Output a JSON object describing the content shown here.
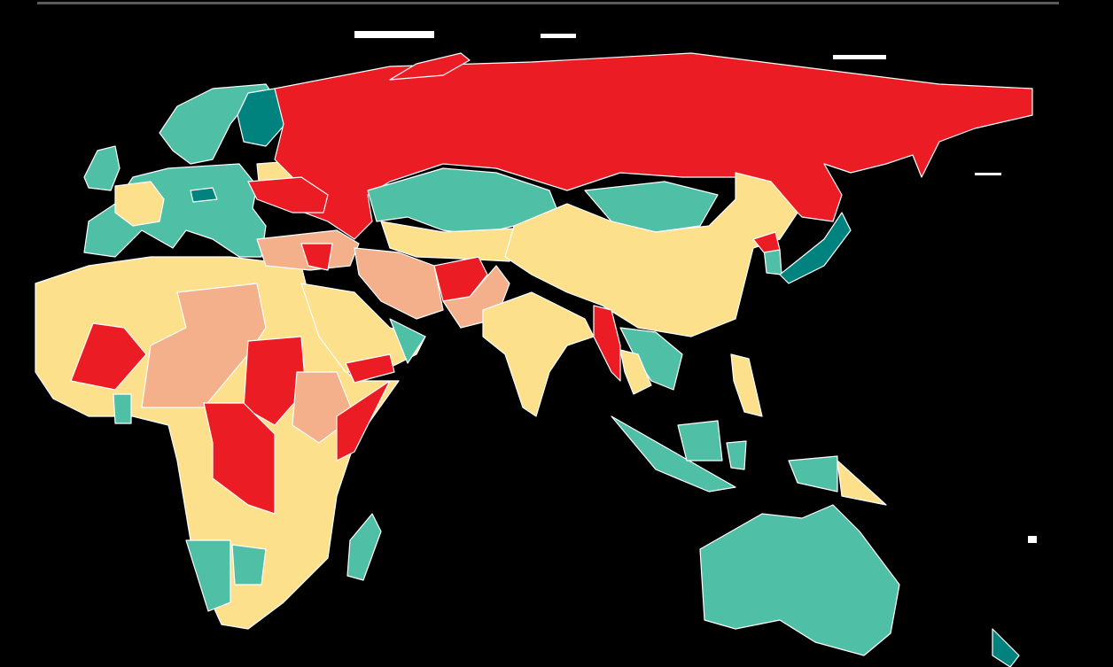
{
  "map": {
    "type": "choropleth",
    "background": "#000000",
    "border_color": "#ffffff",
    "palette": {
      "red": "#ec1c24",
      "salmon": "#f4b08b",
      "yellow": "#fde08c",
      "teal": "#4fbfa6",
      "dark_teal": "#00837e"
    }
  }
}
